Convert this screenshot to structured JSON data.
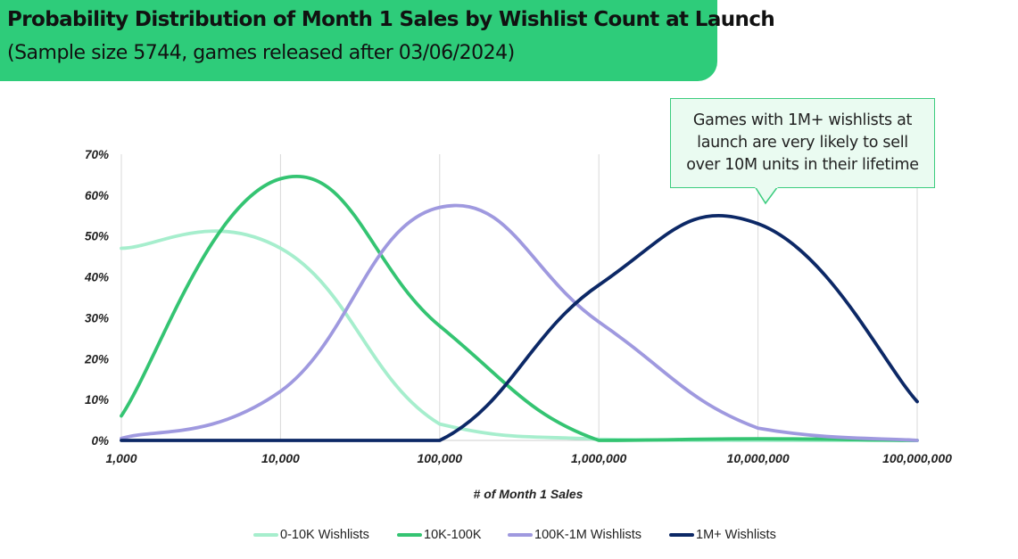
{
  "header": {
    "title": "Probability Distribution of Month 1 Sales by Wishlist Count at Launch",
    "subtitle": "(Sample size 5744, games released after 03/06/2024)"
  },
  "callout": {
    "line1": "Games with 1M+ wishlists at",
    "line2": "launch are very likely to sell",
    "line3": "over 10M units in their lifetime"
  },
  "colors": {
    "banner": "#2ecc7a",
    "series_0_10k": "#a6eecd",
    "series_10k_100k": "#34c472",
    "series_100k_1m": "#9f99df",
    "series_1m_plus": "#0c2866"
  },
  "chart_data": {
    "type": "line",
    "xlabel": "# of Month 1 Sales",
    "ylabel": "",
    "x_scale": "log",
    "x": [
      1000,
      10000,
      100000,
      1000000,
      10000000,
      100000000
    ],
    "x_tick_labels": [
      "1,000",
      "10,000",
      "100,000",
      "1,000,000",
      "10,000,000",
      "100,000,000"
    ],
    "y_tick_labels": [
      "0%",
      "10%",
      "20%",
      "30%",
      "40%",
      "50%",
      "60%",
      "70%"
    ],
    "ylim": [
      0,
      70
    ],
    "grid": "vertical",
    "legend": "bottom",
    "series": [
      {
        "name": "0-10K Wishlists",
        "values": [
          47,
          47,
          4,
          0.3,
          0,
          0
        ]
      },
      {
        "name": "10K-100K",
        "values": [
          6,
          64,
          28,
          0,
          0.4,
          0
        ]
      },
      {
        "name": "100K-1M Wishlists",
        "values": [
          0.5,
          12,
          57,
          29,
          3,
          0
        ]
      },
      {
        "name": "1M+ Wishlists",
        "values": [
          0,
          0,
          0,
          38,
          53,
          9.5
        ]
      }
    ]
  }
}
